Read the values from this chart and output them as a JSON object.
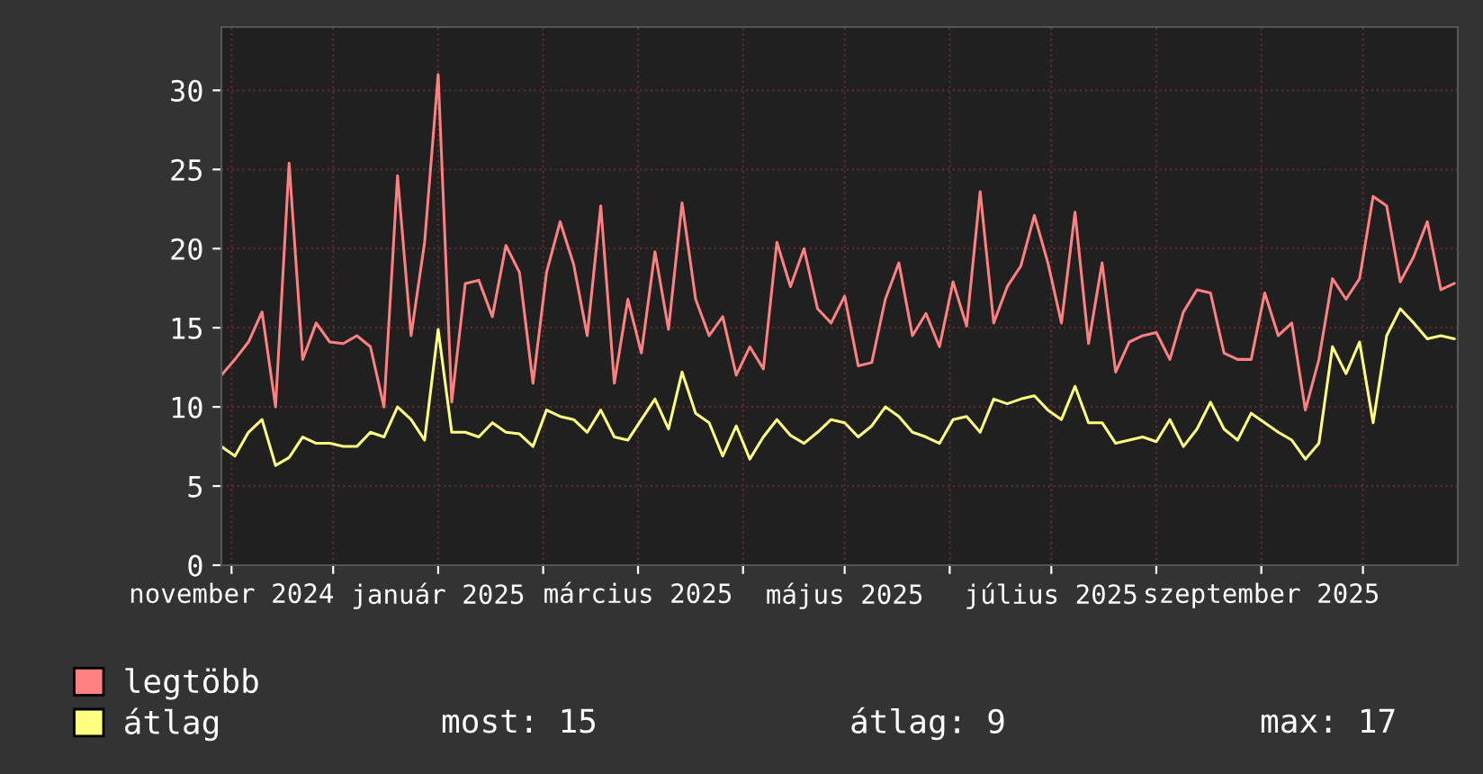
{
  "chart_data": {
    "type": "line",
    "x": [
      "2024-10-29",
      "2024-11-02",
      "2024-11-06",
      "2024-11-10",
      "2024-11-14",
      "2024-11-18",
      "2024-11-22",
      "2024-11-26",
      "2024-11-30",
      "2024-12-04",
      "2024-12-08",
      "2024-12-12",
      "2024-12-16",
      "2024-12-20",
      "2024-12-24",
      "2024-12-28",
      "2025-01-01",
      "2025-01-05",
      "2025-01-09",
      "2025-01-13",
      "2025-01-17",
      "2025-01-21",
      "2025-01-25",
      "2025-01-29",
      "2025-02-02",
      "2025-02-06",
      "2025-02-10",
      "2025-02-14",
      "2025-02-18",
      "2025-02-22",
      "2025-02-26",
      "2025-03-02",
      "2025-03-06",
      "2025-03-10",
      "2025-03-14",
      "2025-03-18",
      "2025-03-22",
      "2025-03-26",
      "2025-03-30",
      "2025-04-03",
      "2025-04-07",
      "2025-04-11",
      "2025-04-15",
      "2025-04-19",
      "2025-04-23",
      "2025-04-27",
      "2025-05-01",
      "2025-05-05",
      "2025-05-09",
      "2025-05-13",
      "2025-05-17",
      "2025-05-21",
      "2025-05-25",
      "2025-05-29",
      "2025-06-02",
      "2025-06-06",
      "2025-06-10",
      "2025-06-14",
      "2025-06-18",
      "2025-06-22",
      "2025-06-26",
      "2025-06-30",
      "2025-07-04",
      "2025-07-08",
      "2025-07-12",
      "2025-07-16",
      "2025-07-20",
      "2025-07-24",
      "2025-07-28",
      "2025-08-01",
      "2025-08-05",
      "2025-08-09",
      "2025-08-13",
      "2025-08-17",
      "2025-08-21",
      "2025-08-25",
      "2025-08-29",
      "2025-09-02",
      "2025-09-06",
      "2025-09-10",
      "2025-09-14",
      "2025-09-18",
      "2025-09-22",
      "2025-09-26",
      "2025-09-30",
      "2025-10-04",
      "2025-10-08",
      "2025-10-12",
      "2025-10-16",
      "2025-10-20",
      "2025-10-24",
      "2025-10-28"
    ],
    "series": [
      {
        "name": "legtöbb",
        "color": "#ff8080",
        "values": [
          12,
          13,
          14.1,
          16,
          10,
          25.4,
          13,
          15.3,
          14.1,
          14,
          14.5,
          13.8,
          10,
          24.6,
          14.5,
          20.4,
          31,
          10.3,
          17.8,
          18,
          15.7,
          20.2,
          18.5,
          11.5,
          18.5,
          21.7,
          19,
          14.5,
          22.7,
          11.5,
          16.8,
          13.4,
          19.8,
          14.9,
          22.9,
          16.8,
          14.5,
          15.7,
          12,
          13.8,
          12.4,
          20.4,
          17.6,
          20,
          16.2,
          15.3,
          17,
          12.6,
          12.8,
          16.8,
          19.1,
          14.5,
          15.9,
          13.8,
          17.9,
          15.1,
          23.6,
          15.3,
          17.6,
          18.9,
          22.1,
          19.1,
          15.3,
          22.3,
          14,
          19.1,
          12.2,
          14.1,
          14.5,
          14.7,
          13,
          16,
          17.4,
          17.2,
          13.4,
          13,
          13,
          17.2,
          14.5,
          15.3,
          9.8,
          13,
          18.1,
          16.8,
          18.1,
          23.3,
          22.7,
          17.9,
          19.5,
          21.7,
          17.4,
          17.8
        ]
      },
      {
        "name": "átlag",
        "color": "#ffff80",
        "values": [
          7.5,
          6.9,
          8.4,
          9.2,
          6.3,
          6.8,
          8.1,
          7.7,
          7.7,
          7.5,
          7.5,
          8.4,
          8.1,
          10,
          9.2,
          7.9,
          14.9,
          8.4,
          8.4,
          8.1,
          9,
          8.4,
          8.3,
          7.5,
          9.8,
          9.4,
          9.2,
          8.4,
          9.8,
          8.1,
          7.9,
          9.2,
          10.5,
          8.6,
          12.2,
          9.6,
          9,
          6.9,
          8.8,
          6.7,
          8.1,
          9.2,
          8.2,
          7.7,
          8.4,
          9.2,
          9,
          8.1,
          8.8,
          10,
          9.4,
          8.4,
          8.1,
          7.7,
          9.2,
          9.4,
          8.4,
          10.5,
          10.2,
          10.5,
          10.7,
          9.8,
          9.2,
          11.3,
          9,
          9,
          7.7,
          7.9,
          8.1,
          7.8,
          9.2,
          7.5,
          8.6,
          10.3,
          8.6,
          7.9,
          9.6,
          9,
          8.4,
          7.9,
          6.7,
          7.7,
          13.8,
          12.1,
          14.1,
          9,
          14.5,
          16.2,
          15.3,
          14.3,
          14.5,
          14.3
        ]
      }
    ],
    "xlim": [
      "2024-10-29",
      "2025-10-29"
    ],
    "xticks": [
      {
        "value": "2024-11-01",
        "label": "november 2024"
      },
      {
        "value": "2024-12-01",
        "label": null
      },
      {
        "value": "2025-01-01",
        "label": "január 2025"
      },
      {
        "value": "2025-02-01",
        "label": null
      },
      {
        "value": "2025-03-01",
        "label": "március 2025"
      },
      {
        "value": "2025-04-01",
        "label": null
      },
      {
        "value": "2025-05-01",
        "label": "május 2025"
      },
      {
        "value": "2025-06-01",
        "label": null
      },
      {
        "value": "2025-07-01",
        "label": "július 2025"
      },
      {
        "value": "2025-08-01",
        "label": null
      },
      {
        "value": "2025-09-01",
        "label": "szeptember 2025"
      },
      {
        "value": "2025-10-01",
        "label": null
      }
    ],
    "ylim": [
      0,
      34
    ],
    "yticks": [
      0,
      5,
      10,
      15,
      20,
      25,
      30
    ],
    "grid": true,
    "legend": "bottom",
    "marker": "none",
    "line_style": "solid",
    "annotations": [
      "most: 15",
      "átlag: 9",
      "max: 17"
    ]
  }
}
